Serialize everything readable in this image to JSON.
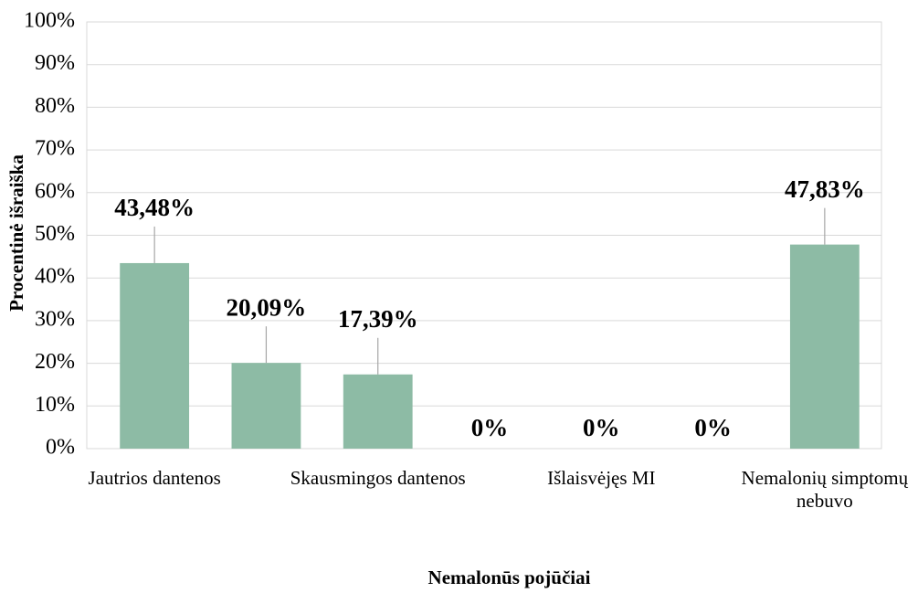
{
  "chart_data": {
    "type": "bar",
    "x_label": "Nemalonūs pojūčiai",
    "y_label": "Procentinė išraiška",
    "categories": [
      "Jautrios dantenos",
      null,
      "Skausmingos dantenos",
      null,
      "Išlaisvėjęs MI",
      null,
      "Nemalonių simptomų nebuvo"
    ],
    "values": [
      43.48,
      20.09,
      17.39,
      0,
      0,
      0,
      47.83
    ],
    "value_labels": [
      "43,48%",
      "20,09%",
      "17,39%",
      "0%",
      "0%",
      "0%",
      "47,83%"
    ],
    "color": "#8dbba5",
    "ylim": [
      0,
      100
    ],
    "yticks": [
      {
        "value": 0,
        "label": "0%"
      },
      {
        "value": 10,
        "label": "10%"
      },
      {
        "value": 20,
        "label": "20%"
      },
      {
        "value": 30,
        "label": "30%"
      },
      {
        "value": 40,
        "label": "40%"
      },
      {
        "value": 50,
        "label": "50%"
      },
      {
        "value": 60,
        "label": "60%"
      },
      {
        "value": 70,
        "label": "70%"
      },
      {
        "value": 80,
        "label": "80%"
      },
      {
        "value": 90,
        "label": "90%"
      },
      {
        "value": 100,
        "label": "100%"
      }
    ],
    "grid": true
  }
}
